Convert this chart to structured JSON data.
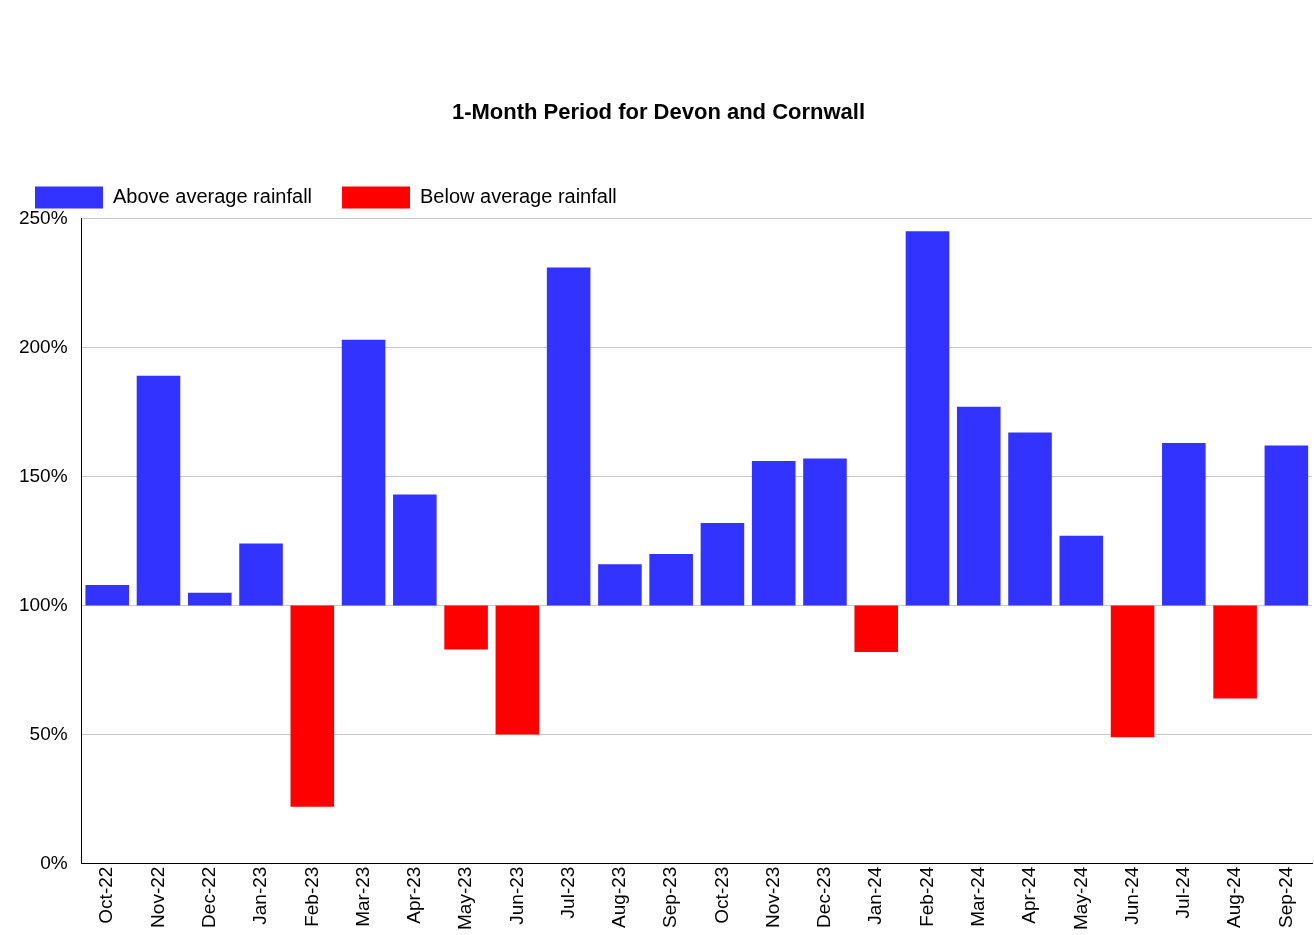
{
  "chart_data": {
    "type": "bar",
    "title": "1-Month Period for Devon and Cornwall",
    "categories": [
      "Oct-22",
      "Nov-22",
      "Dec-22",
      "Jan-23",
      "Feb-23",
      "Mar-23",
      "Apr-23",
      "May-23",
      "Jun-23",
      "Jul-23",
      "Aug-23",
      "Sep-23",
      "Oct-23",
      "Nov-23",
      "Dec-23",
      "Jan-24",
      "Feb-24",
      "Mar-24",
      "Apr-24",
      "May-24",
      "Jun-24",
      "Jul-24",
      "Aug-24",
      "Sep-24"
    ],
    "series": [
      {
        "name": "Above average rainfall",
        "color": "#3333ff",
        "base": [
          100,
          100,
          100,
          100,
          null,
          100,
          100,
          null,
          null,
          100,
          100,
          100,
          100,
          100,
          100,
          null,
          100,
          100,
          100,
          100,
          null,
          100,
          null,
          100
        ],
        "values": [
          8,
          89,
          5,
          24,
          null,
          103,
          43,
          null,
          null,
          131,
          16,
          20,
          32,
          56,
          57,
          null,
          145,
          77,
          67,
          27,
          null,
          63,
          null,
          62
        ]
      },
      {
        "name": "Below average rainfall",
        "color": "#ff0000",
        "base": [
          null,
          null,
          null,
          null,
          100,
          null,
          null,
          100,
          100,
          null,
          null,
          null,
          null,
          null,
          null,
          100,
          null,
          null,
          null,
          null,
          100,
          null,
          100,
          null
        ],
        "values": [
          null,
          null,
          null,
          null,
          -78,
          null,
          null,
          -17,
          -50,
          null,
          null,
          null,
          null,
          null,
          null,
          -18,
          null,
          null,
          null,
          null,
          -51,
          null,
          -36,
          null
        ]
      }
    ],
    "ylim": [
      0,
      250
    ],
    "yticks": [
      {
        "value": 0,
        "label": "0%"
      },
      {
        "value": 50,
        "label": "50%"
      },
      {
        "value": 100,
        "label": "100%"
      },
      {
        "value": 150,
        "label": "150%"
      },
      {
        "value": 200,
        "label": "200%"
      },
      {
        "value": 250,
        "label": "250%"
      }
    ],
    "grid": "y",
    "legend": "top"
  }
}
